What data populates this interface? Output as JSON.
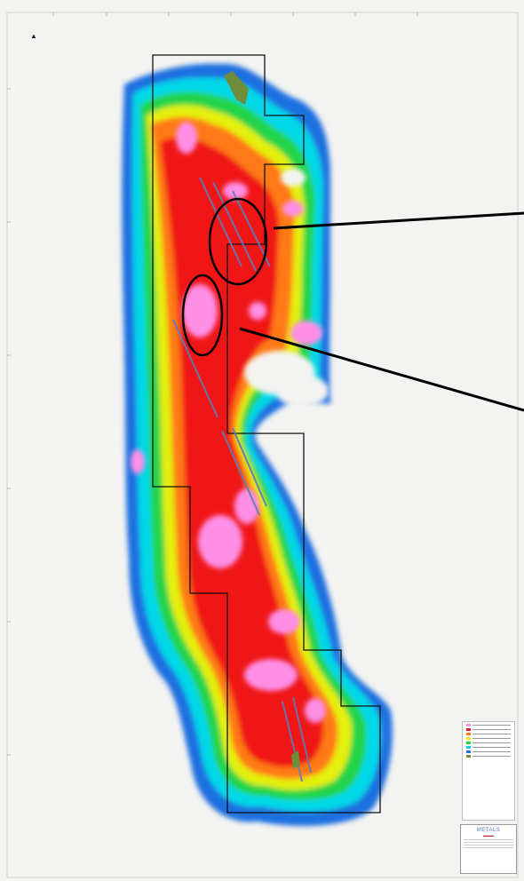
{
  "map": {
    "north_marker": "▲",
    "colors": {
      "background": "#f3f3f1",
      "low": "#1f6fe0",
      "low_mid": "#00d8e8",
      "mid": "#22d44a",
      "mid_high": "#e4f010",
      "high": "#ff7a18",
      "very_high": "#f01818",
      "peak": "#ff8ee6",
      "tenement_outline": "#111111",
      "structures": "#5a7dbd",
      "callout": "#000000"
    },
    "annotations": [
      "upper-target-ellipse",
      "lower-target-ellipse"
    ]
  },
  "title_block": {
    "company": "METALS",
    "sub": "▬▬▬"
  }
}
